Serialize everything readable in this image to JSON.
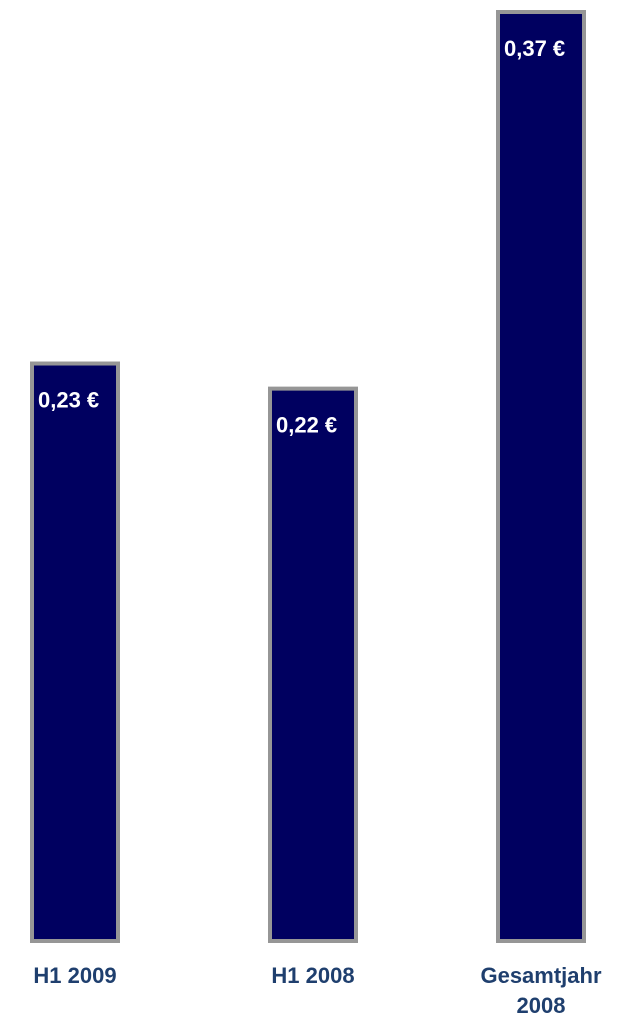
{
  "chart_data": {
    "type": "bar",
    "categories": [
      [
        "H1 2009"
      ],
      [
        "H1 2008"
      ],
      [
        "Gesamtjahr",
        "2008"
      ]
    ],
    "values": [
      0.23,
      0.22,
      0.37
    ],
    "value_labels": [
      "0,23 €",
      "0,22 €",
      "0,37 €"
    ],
    "ylim": [
      0,
      0.37
    ],
    "grid": false,
    "colors": {
      "bar_fill": "#000060",
      "bar_border": "#969696",
      "value_label": "#ffffff",
      "category_label": "#1f3f6e"
    }
  }
}
